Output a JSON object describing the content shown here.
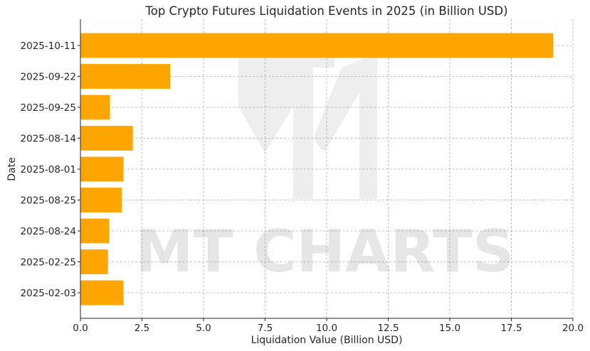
{
  "chart_data": {
    "type": "bar",
    "orientation": "horizontal",
    "title": "Top Crypto Futures Liquidation Events in 2025 (in Billion USD)",
    "xlabel": "Liquidation Value (Billion USD)",
    "ylabel": "Date",
    "categories": [
      "2025-10-11",
      "2025-09-22",
      "2025-09-25",
      "2025-08-14",
      "2025-08-01",
      "2025-08-25",
      "2025-08-24",
      "2025-02-25",
      "2025-02-03"
    ],
    "values": [
      19.2,
      3.65,
      1.2,
      2.13,
      1.75,
      1.68,
      1.17,
      1.12,
      1.75
    ],
    "xlim": [
      0,
      20
    ],
    "xticks": [
      "0.0",
      "2.5",
      "5.0",
      "7.5",
      "10.0",
      "12.5",
      "15.0",
      "17.5",
      "20.0"
    ],
    "grid": true,
    "bar_color": "#FFA500"
  },
  "watermark": {
    "text": "MT CHARTS"
  }
}
